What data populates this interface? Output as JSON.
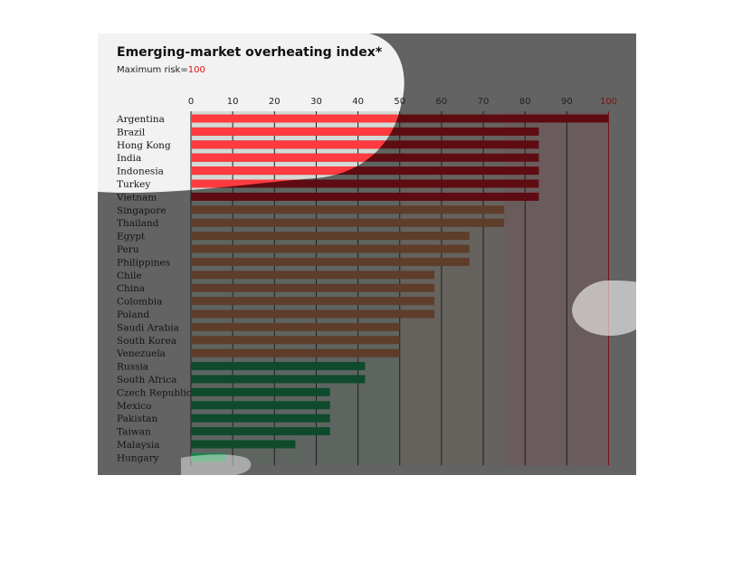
{
  "chart_data": {
    "type": "bar",
    "orientation": "horizontal",
    "title": "Emerging-market overheating index*",
    "subtitle": "Maximum risk=",
    "subtitle_value": "100",
    "xlim": [
      0,
      100
    ],
    "x_ticks": [
      0,
      10,
      20,
      30,
      40,
      50,
      60,
      70,
      80,
      90,
      100
    ],
    "grid": true,
    "categories": [
      "Argentina",
      "Brazil",
      "Hong Kong",
      "India",
      "Indonesia",
      "Turkey",
      "Vietnam",
      "Singapore",
      "Thailand",
      "Egypt",
      "Peru",
      "Philippines",
      "Chile",
      "China",
      "Colombia",
      "Poland",
      "Saudi Arabia",
      "South Korea",
      "Venezuela",
      "Russia",
      "South Africa",
      "Czech Republic",
      "Mexico",
      "Pakistan",
      "Taiwan",
      "Malaysia",
      "Hungary"
    ],
    "values": [
      100,
      83.3,
      83.3,
      83.3,
      83.3,
      83.3,
      83.3,
      75,
      75,
      66.7,
      66.7,
      66.7,
      58.3,
      58.3,
      58.3,
      58.3,
      50,
      50,
      50,
      41.7,
      41.7,
      33.3,
      33.3,
      33.3,
      33.3,
      25,
      8.3
    ],
    "colors": {
      "high": "#5e0b12",
      "high_highlight": "#ff3b3f",
      "medium": "#5e3d2a",
      "low": "#0f4a2c",
      "lowest": "#17884a",
      "axis_max": "#7a1313"
    }
  }
}
